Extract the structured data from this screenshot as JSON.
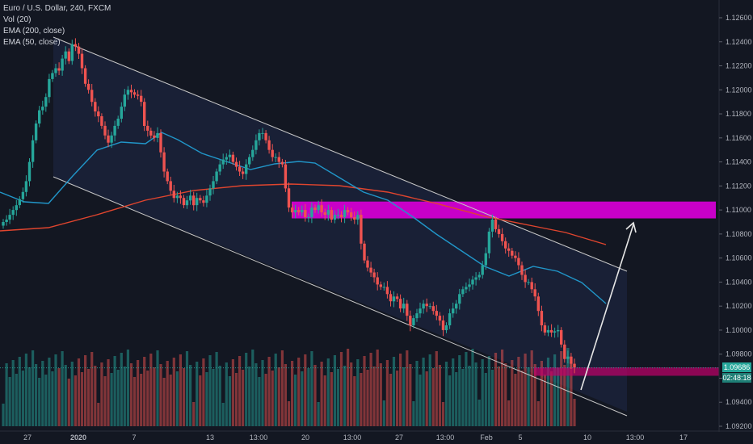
{
  "legend": {
    "symbol": "Euro / U.S. Dollar, 240, FXCM",
    "vol": "Vol (20)",
    "ema200": "EMA (200, close)",
    "ema50": "EMA (50, close)"
  },
  "current_price_label": "1.09686",
  "countdown_label": "02:48:18",
  "colors": {
    "background": "#131722",
    "bull": "#26a69a",
    "bear": "#ef5350",
    "ema200": "#e0452e",
    "ema50": "#2196c9",
    "zone": "#c800c8",
    "channel": "#c8c8c8",
    "text": "#b2b5be"
  },
  "chart_data": {
    "type": "candlestick",
    "y_axis": {
      "ticks": [
        "1.12600",
        "1.12400",
        "1.12200",
        "1.12000",
        "1.11800",
        "1.11600",
        "1.11400",
        "1.11200",
        "1.11000",
        "1.10800",
        "1.10600",
        "1.10400",
        "1.10200",
        "1.10000",
        "1.09800",
        "1.09600",
        "1.09400",
        "1.09200"
      ],
      "range": [
        1.092,
        1.1275
      ]
    },
    "x_axis": {
      "ticks": [
        "27",
        "2020",
        "7",
        "13",
        "13:00",
        "20",
        "13:00",
        "27",
        "13:00",
        "Feb",
        "5",
        "10",
        "13:00",
        "17"
      ]
    },
    "current_price": 1.09686,
    "countdown": "02:48:18",
    "resistance_zone": [
      1.1093,
      1.1107
    ],
    "support_zone": [
      1.0962,
      1.0969
    ],
    "closes": [
      1.109,
      1.1092,
      1.1096,
      1.11,
      1.1104,
      1.1109,
      1.1115,
      1.1124,
      1.114,
      1.1158,
      1.1172,
      1.1183,
      1.1186,
      1.1194,
      1.1209,
      1.1214,
      1.1218,
      1.1216,
      1.1226,
      1.1232,
      1.1224,
      1.1238,
      1.1236,
      1.123,
      1.1218,
      1.1205,
      1.12,
      1.119,
      1.1182,
      1.1178,
      1.117,
      1.1162,
      1.1156,
      1.1162,
      1.117,
      1.1176,
      1.1186,
      1.1196,
      1.12,
      1.1198,
      1.1196,
      1.1195,
      1.119,
      1.117,
      1.1166,
      1.1162,
      1.116,
      1.1164,
      1.1148,
      1.1132,
      1.1124,
      1.1116,
      1.111,
      1.1112,
      1.111,
      1.1104,
      1.1108,
      1.1112,
      1.1104,
      1.111,
      1.1108,
      1.1106,
      1.1112,
      1.1118,
      1.1124,
      1.1132,
      1.1138,
      1.1142,
      1.1144,
      1.1146,
      1.114,
      1.1136,
      1.1132,
      1.113,
      1.1138,
      1.1144,
      1.115,
      1.1158,
      1.1164,
      1.1164,
      1.1158,
      1.115,
      1.1144,
      1.1144,
      1.114,
      1.1138,
      1.1118,
      1.1102,
      1.1098,
      1.11,
      1.1098,
      1.11,
      1.1094,
      1.1094,
      1.1102,
      1.11,
      1.1104,
      1.1098,
      1.1096,
      1.11,
      1.1092,
      1.1096,
      1.1096,
      1.1094,
      1.11,
      1.1098,
      1.1094,
      1.1092,
      1.1096,
      1.1072,
      1.1058,
      1.1052,
      1.1048,
      1.1044,
      1.1038,
      1.1036,
      1.1036,
      1.103,
      1.1024,
      1.1028,
      1.1026,
      1.1018,
      1.1022,
      1.1012,
      1.1004,
      1.101,
      1.1014,
      1.1018,
      1.1022,
      1.102,
      1.102,
      1.1016,
      1.1012,
      1.1008,
      1.1,
      1.1004,
      1.1014,
      1.1018,
      1.1022,
      1.103,
      1.1034,
      1.1036,
      1.1038,
      1.1042,
      1.1044,
      1.1046,
      1.1054,
      1.1064,
      1.1082,
      1.1092,
      1.1084,
      1.108,
      1.1074,
      1.1068,
      1.1066,
      1.1062,
      1.106,
      1.1054,
      1.1046,
      1.104,
      1.104,
      1.1034,
      1.1028,
      1.1016,
      1.1004,
      1.0998,
      1.1,
      1.0998,
      1.0999,
      1.1,
      1.0988,
      1.0976,
      1.0978,
      1.0972,
      1.0969
    ]
  }
}
